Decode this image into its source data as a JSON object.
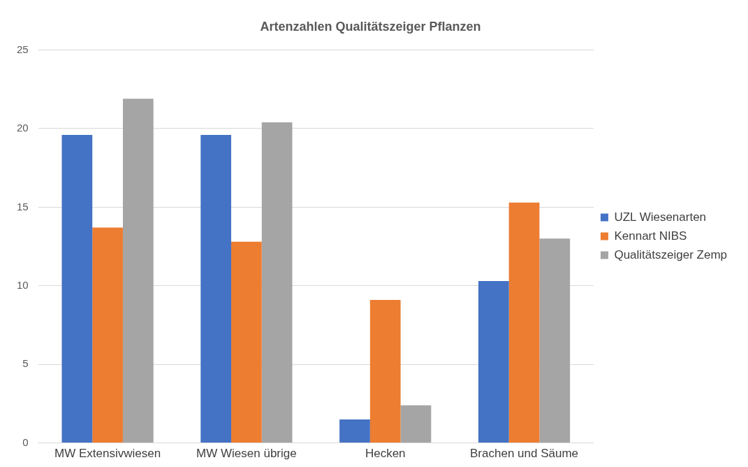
{
  "chart_data": {
    "type": "bar",
    "title": "Artenzahlen Qualitätszeiger Pflanzen",
    "categories": [
      "MW Extensivwiesen",
      "MW Wiesen übrige",
      "Hecken",
      "Brachen und Säume"
    ],
    "series": [
      {
        "name": "UZL Wiesenarten",
        "color": "#4472c4",
        "values": [
          19.6,
          19.6,
          1.5,
          10.3
        ]
      },
      {
        "name": "Kennart NIBS",
        "color": "#ed7d31",
        "values": [
          13.7,
          12.8,
          9.1,
          15.3
        ]
      },
      {
        "name": "Qualitätszeiger Zemp",
        "color": "#a5a5a5",
        "values": [
          21.9,
          20.4,
          2.4,
          13.0
        ]
      }
    ],
    "ylim": [
      0,
      25
    ],
    "yticks": [
      0,
      5,
      10,
      15,
      20,
      25
    ],
    "grid": "y",
    "legend": "right"
  }
}
